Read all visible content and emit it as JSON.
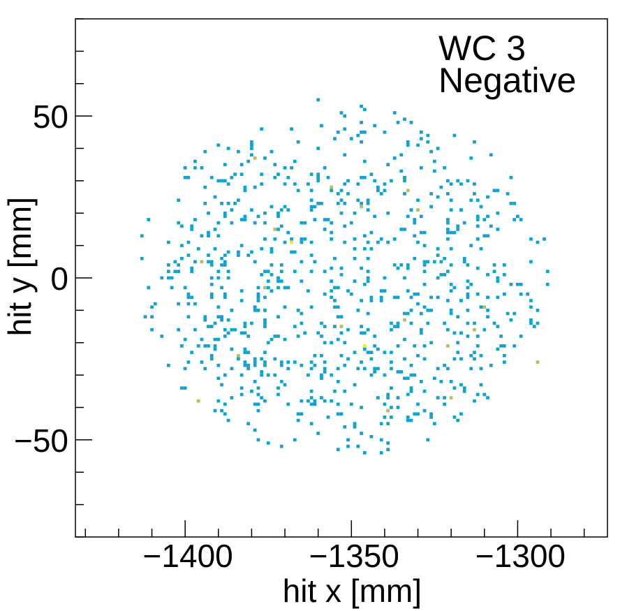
{
  "chart_data": {
    "type": "heatmap",
    "title": "WC 3",
    "subtitle": "Negative",
    "xlabel": "hit x [mm]",
    "ylabel": "hit y [mm]",
    "xlim": [
      -1433,
      -1273
    ],
    "ylim": [
      -80,
      80
    ],
    "x_ticks": [
      -1400,
      -1350,
      -1300
    ],
    "y_ticks": [
      -50,
      0,
      50
    ],
    "x_tick_labels": [
      "−1400",
      "−1350",
      "−1300"
    ],
    "y_tick_labels": [
      "−50",
      "0",
      "50"
    ],
    "grid": false,
    "legend": "none",
    "bin_width_mm": 1,
    "colors": {
      "count_1": "#0fa3cf",
      "count_2": "#b4be63",
      "count_3": "#f2f000",
      "axes": "#000000",
      "background": "#ffffff"
    },
    "extent": {
      "x_min": -1415,
      "x_max": -1290,
      "y_min": -55,
      "y_max": 55
    },
    "bins": [
      {
        "x": -1360,
        "y": 55,
        "count": 1
      },
      {
        "x": -1379,
        "y": 37,
        "count": 2
      },
      {
        "x": -1347,
        "y": 22,
        "count": 2
      },
      {
        "x": -1368,
        "y": 11,
        "count": 3
      },
      {
        "x": -1373,
        "y": 15,
        "count": 2
      },
      {
        "x": -1395,
        "y": 5,
        "count": 2
      },
      {
        "x": -1353,
        "y": -15,
        "count": 2
      },
      {
        "x": -1346,
        "y": -21,
        "count": 3
      },
      {
        "x": -1334,
        "y": -13,
        "count": 2
      },
      {
        "x": -1330,
        "y": 21,
        "count": 2
      },
      {
        "x": -1321,
        "y": -21,
        "count": 2
      },
      {
        "x": -1313,
        "y": -16,
        "count": 2
      },
      {
        "x": -1396,
        "y": -38,
        "count": 2
      },
      {
        "x": -1384,
        "y": -24,
        "count": 2
      },
      {
        "x": -1294,
        "y": -26,
        "count": 2
      },
      {
        "x": -1320,
        "y": -37,
        "count": 2
      },
      {
        "x": -1339,
        "y": -41,
        "count": 2
      },
      {
        "x": -1310,
        "y": -9,
        "count": 2
      },
      {
        "x": -1376,
        "y": -3,
        "count": 2
      },
      {
        "x": -1356,
        "y": 28,
        "count": 2
      },
      {
        "x": -1333,
        "y": 27,
        "count": 2
      }
    ]
  }
}
